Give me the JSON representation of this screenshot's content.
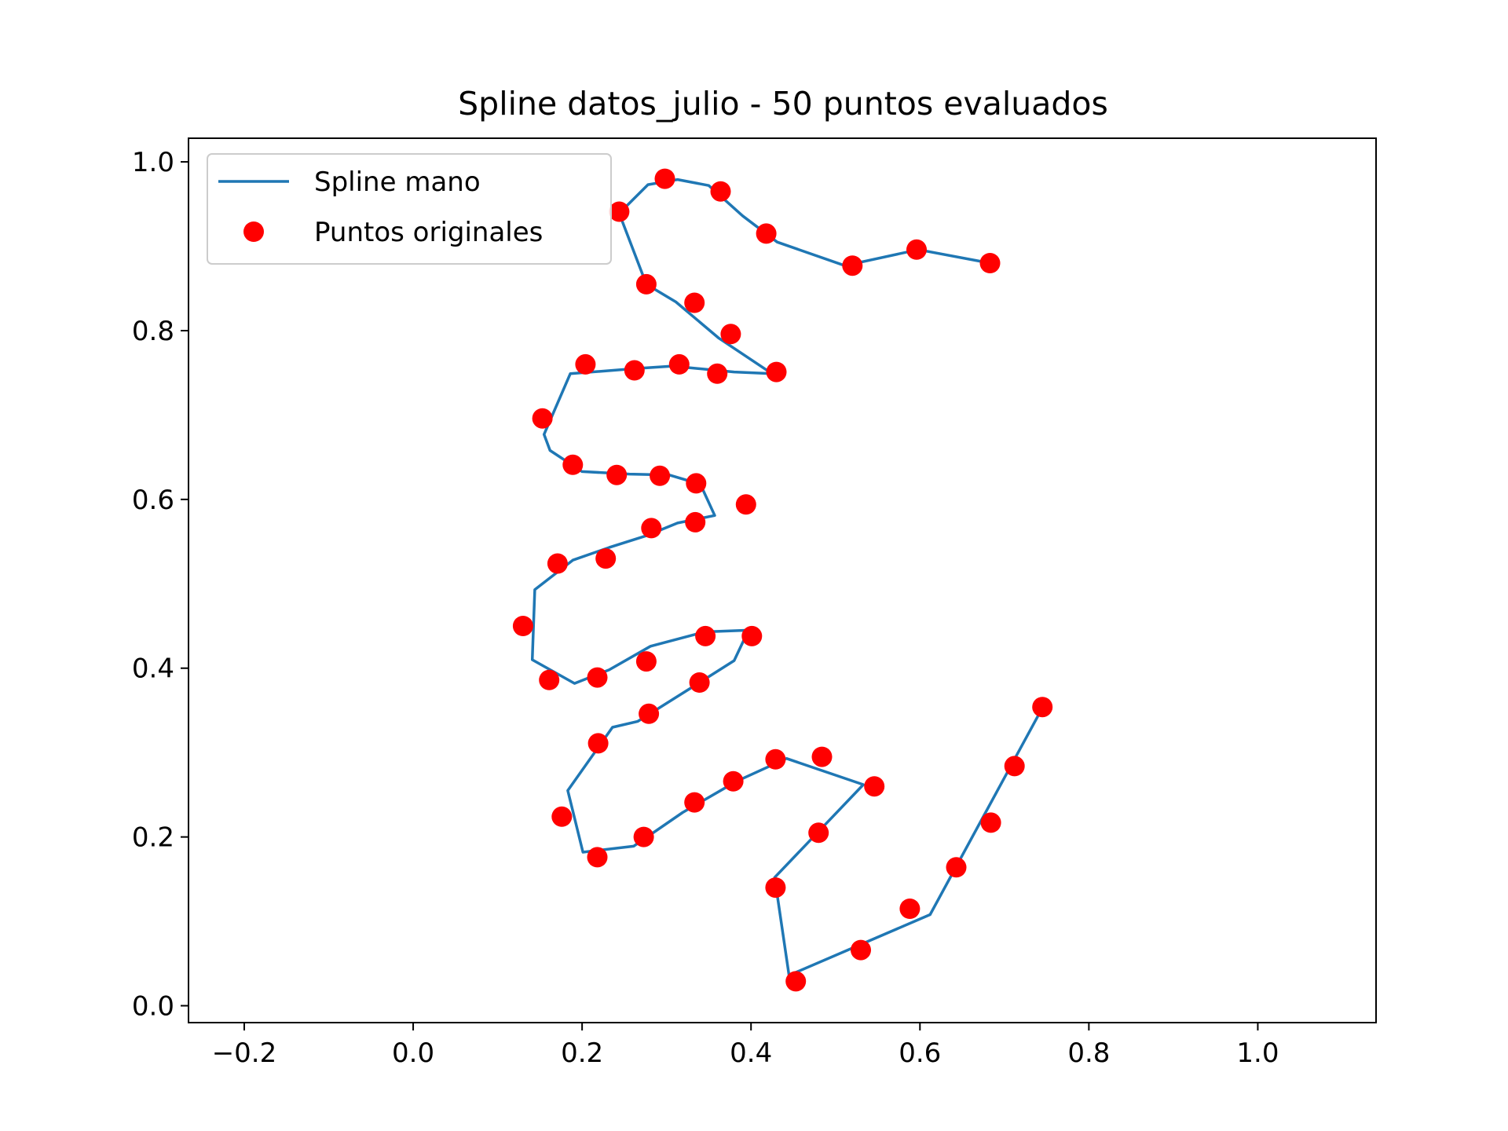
{
  "chart_data": {
    "type": "line",
    "title": "Spline datos_julio - 50 puntos evaluados",
    "xlabel": "",
    "ylabel": "",
    "xlim": [
      -0.266,
      1.14
    ],
    "ylim": [
      -0.02,
      1.028
    ],
    "xticks": [
      -0.2,
      0.0,
      0.2,
      0.4,
      0.6,
      0.8,
      1.0
    ],
    "xtick_labels": [
      "−0.2",
      "0.0",
      "0.2",
      "0.4",
      "0.6",
      "0.8",
      "1.0"
    ],
    "yticks": [
      0.0,
      0.2,
      0.4,
      0.6,
      0.8,
      1.0
    ],
    "ytick_labels": [
      "0.0",
      "0.2",
      "0.4",
      "0.6",
      "0.8",
      "1.0"
    ],
    "grid": false,
    "legend": {
      "placement": "upper left",
      "entries": [
        {
          "label": "Spline mano",
          "kind": "line",
          "color": "#1f77b4"
        },
        {
          "label": "Puntos originales",
          "kind": "marker",
          "color": "#ff0000"
        }
      ]
    },
    "series": [
      {
        "name": "Spline mano",
        "kind": "line",
        "color": "#1f77b4",
        "x": [
          0.683,
          0.598,
          0.511,
          0.431,
          0.39,
          0.35,
          0.313,
          0.278,
          0.244,
          0.276,
          0.311,
          0.362,
          0.425,
          0.38,
          0.307,
          0.263,
          0.186,
          0.155,
          0.162,
          0.2,
          0.256,
          0.303,
          0.34,
          0.357,
          0.313,
          0.276,
          0.232,
          0.189,
          0.144,
          0.141,
          0.191,
          0.232,
          0.281,
          0.345,
          0.397,
          0.38,
          0.328,
          0.266,
          0.236,
          0.183,
          0.201,
          0.261,
          0.319,
          0.383,
          0.442,
          0.533,
          0.428,
          0.445,
          0.612,
          0.745
        ],
        "y": [
          0.88,
          0.896,
          0.877,
          0.905,
          0.936,
          0.972,
          0.979,
          0.973,
          0.939,
          0.855,
          0.834,
          0.791,
          0.749,
          0.751,
          0.758,
          0.755,
          0.749,
          0.677,
          0.658,
          0.633,
          0.63,
          0.629,
          0.618,
          0.581,
          0.572,
          0.557,
          0.543,
          0.528,
          0.493,
          0.41,
          0.382,
          0.398,
          0.426,
          0.443,
          0.445,
          0.409,
          0.376,
          0.337,
          0.33,
          0.255,
          0.182,
          0.189,
          0.229,
          0.266,
          0.293,
          0.262,
          0.152,
          0.036,
          0.108,
          0.353
        ]
      },
      {
        "name": "Puntos originales",
        "kind": "scatter",
        "color": "#ff0000",
        "x": [
          0.683,
          0.596,
          0.52,
          0.418,
          0.364,
          0.298,
          0.244,
          0.276,
          0.333,
          0.376,
          0.43,
          0.36,
          0.315,
          0.262,
          0.204,
          0.153,
          0.189,
          0.241,
          0.292,
          0.335,
          0.394,
          0.334,
          0.282,
          0.228,
          0.171,
          0.13,
          0.161,
          0.218,
          0.276,
          0.346,
          0.401,
          0.339,
          0.279,
          0.219,
          0.176,
          0.218,
          0.273,
          0.333,
          0.379,
          0.429,
          0.484,
          0.546,
          0.48,
          0.429,
          0.453,
          0.53,
          0.588,
          0.643,
          0.684,
          0.712,
          0.745
        ],
        "y": [
          0.88,
          0.896,
          0.877,
          0.915,
          0.965,
          0.98,
          0.941,
          0.855,
          0.833,
          0.796,
          0.751,
          0.749,
          0.76,
          0.753,
          0.76,
          0.696,
          0.641,
          0.629,
          0.628,
          0.619,
          0.594,
          0.573,
          0.566,
          0.53,
          0.524,
          0.45,
          0.386,
          0.389,
          0.408,
          0.438,
          0.438,
          0.383,
          0.346,
          0.311,
          0.224,
          0.176,
          0.2,
          0.241,
          0.266,
          0.292,
          0.295,
          0.26,
          0.205,
          0.14,
          0.029,
          0.066,
          0.115,
          0.164,
          0.217,
          0.284,
          0.354
        ]
      }
    ]
  }
}
